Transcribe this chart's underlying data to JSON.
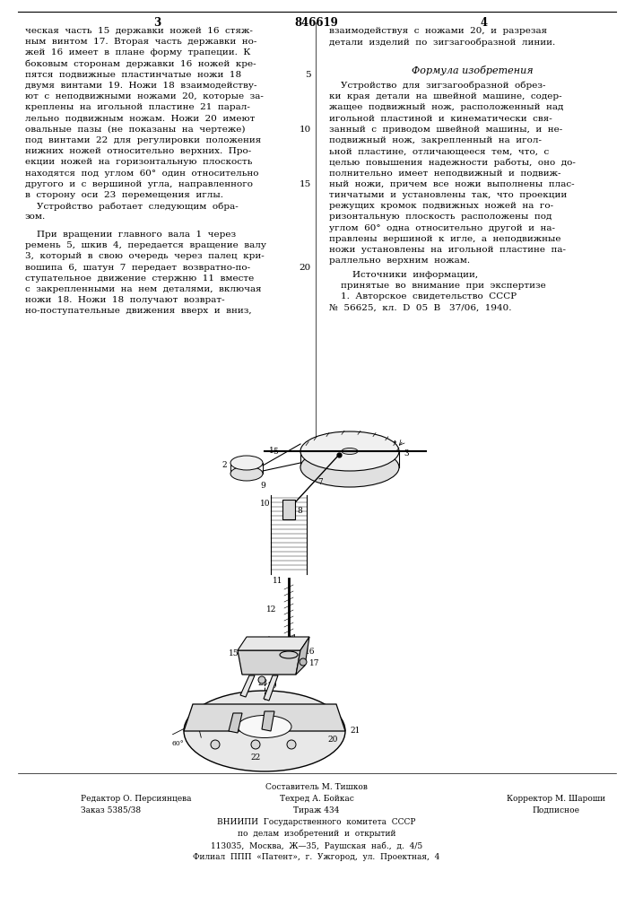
{
  "bg_color": "#ffffff",
  "page_number_left": "3",
  "page_number_center": "846619",
  "page_number_right": "4",
  "left_col_lines": [
    "ческая  часть  15  державки  ножей  16  стяж-",
    "ным  винтом  17.  Вторая  часть  державки  но-",
    "жей  16  имеет  в  плане  форму  трапеции.  К",
    "боковым  сторонам  державки  16  ножей  кре-",
    "пятся  подвижные  пластинчатые  ножи  18",
    "двумя  винтами  19.  Ножи  18  взаимодейству-",
    "ют  с  неподвижными  ножами  20,  которые  за-",
    "креплены  на  игольной  пластине  21  парал-",
    "лельно  подвижным  ножам.  Ножи  20  имеют",
    "овальные  пазы  (не  показаны  на  чертеже)",
    "под  винтами  22  для  регулировки  положения",
    "нижних  ножей  относительно  верхних.  Про-",
    "екции  ножей  на  горизонтальную  плоскость",
    "находятся  под  углом  60°  один  относительно",
    "другого  и  с  вершиной  угла,  направленного",
    "в  сторону  оси  23  перемещения  иглы.",
    "    Устройство  работает  следующим  обра-",
    "зом."
  ],
  "left_col_lines2": [
    "    При  вращении  главного  вала  1  через",
    "ремень  5,  шкив  4,  передается  вращение  валу",
    "3,  который  в  свою  очередь  через  палец  кри-",
    "вошипа  6,  шатун  7  передает  возвратно-по-",
    "ступательное  движение  стержню  11  вместе",
    "с  закрепленными  на  нем  деталями,  включая",
    "ножи  18.  Ножи  18  получают  возврат-",
    "но-поступательные  движения  вверх  и  вниз,"
  ],
  "right_col_lines": [
    "взаимодействуя  с  ножами  20,  и  разрезая",
    "детали  изделий  по  зигзагообразной  линии."
  ],
  "formula_title": "Формула изобретения",
  "formula_lines": [
    "    Устройство  для  зигзагообразной  обрез-",
    "ки  края  детали  на  швейной  машине,  содер-",
    "жащее  подвижный  нож,  расположенный  над",
    "игольной  пластиной  и  кинематически  свя-",
    "занный  с  приводом  швейной  машины,  и  не-",
    "подвижный  нож,  закрепленный  на  игол-",
    "ьной  пластине,  отличающееся  тем,  что,  с",
    "целью  повышения  надежности  работы,  оно  до-",
    "полнительно  имеет  неподвижный  и  подвиж-",
    "ный  ножи,  причем  все  ножи  выполнены  плас-",
    "тинчатыми  и  установлены  так,  что  проекции",
    "режущих  кромок  подвижных  ножей  на  го-",
    "ризонтальную  плоскость  расположены  под",
    "углом  60°  одна  относительно  другой  и  на-",
    "правлены  вершиной  к  игле,  а  неподвижные",
    "ножи  установлены  на  игольной  пластине  па-",
    "раллельно  верхним  ножам."
  ],
  "sources_title": "        Источники  информации,",
  "sources_lines": [
    "    принятые  во  внимание  при  экспертизе",
    "    1.  Авторское  свидетельство  СССР",
    "№  56625,  кл.  D  05  В   37/06,  1940."
  ],
  "line_numbers": [
    "5",
    "10",
    "15",
    "20"
  ],
  "footer_comp": "Составитель М. Тишков",
  "footer_ed": "Редактор О. Персиянцева",
  "footer_tech": "Техред А. Бойкас",
  "footer_corr": "Корректор М. Шароши",
  "footer_order": "Заказ 5385/38",
  "footer_circ": "Тираж 434",
  "footer_signed": "Подписное",
  "footer_vniip": "ВНИИПИ  Государственного  комитета  СССР",
  "footer_dep": "по  делам  изобретений  и  открытий",
  "footer_addr1": "113035,  Москва,  Ж—35,  Раушская  наб.,  д.  4/5",
  "footer_addr2": "Филиал  ППП  «Патент»,  г.  Ужгород,  ул.  Проектная,  4"
}
